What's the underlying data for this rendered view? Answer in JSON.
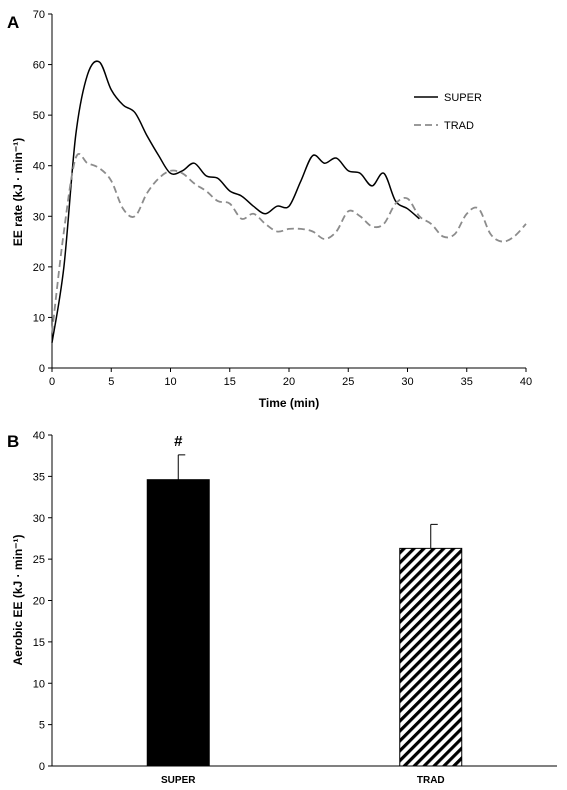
{
  "chart_data": [
    {
      "panel_label": "A",
      "type": "line",
      "xlabel": "Time (min)",
      "ylabel": "EE rate (kJ · min⁻¹)",
      "xlim": [
        0,
        40
      ],
      "ylim": [
        0,
        70
      ],
      "xticks": [
        0,
        5,
        10,
        15,
        20,
        25,
        30,
        35,
        40
      ],
      "yticks": [
        0,
        10,
        20,
        30,
        40,
        50,
        60,
        70
      ],
      "grid": false,
      "legend_position": "right",
      "series": [
        {
          "name": "SUPER",
          "color": "#000000",
          "dash": "solid",
          "x": [
            0,
            1,
            2,
            3,
            4,
            5,
            6,
            7,
            8,
            9,
            10,
            11,
            12,
            13,
            14,
            15,
            16,
            17,
            18,
            19,
            20,
            21,
            22,
            23,
            24,
            25,
            26,
            27,
            28,
            29,
            30,
            31
          ],
          "y": [
            5,
            20,
            46,
            58,
            60.5,
            55,
            52,
            50.5,
            46,
            42,
            38.5,
            39,
            40.5,
            38,
            37.5,
            35,
            34,
            32,
            30.5,
            32,
            32,
            37,
            42,
            40.5,
            41.5,
            39,
            38.5,
            36,
            38.5,
            33,
            31.5,
            29.5
          ]
        },
        {
          "name": "TRAD",
          "color": "#8c8c8c",
          "dash": "dashed",
          "x": [
            0,
            1,
            2,
            3,
            4,
            5,
            6,
            7,
            8,
            9,
            10,
            11,
            12,
            13,
            14,
            15,
            16,
            17,
            18,
            19,
            20,
            21,
            22,
            23,
            24,
            25,
            26,
            27,
            28,
            29,
            30,
            31,
            32,
            33,
            34,
            35,
            36,
            37,
            38,
            39,
            40
          ],
          "y": [
            7,
            27,
            41.5,
            40.5,
            39.5,
            37,
            31.5,
            30,
            34.5,
            37.5,
            39,
            38.5,
            36.5,
            35,
            33,
            32.5,
            29.5,
            30.5,
            28.5,
            27,
            27.5,
            27.5,
            27,
            25.5,
            27,
            31,
            30,
            28,
            28.5,
            32.5,
            33.5,
            30,
            28.5,
            26,
            26.5,
            30.5,
            31.5,
            26.5,
            25,
            26,
            28.5
          ]
        }
      ]
    },
    {
      "panel_label": "B",
      "type": "bar",
      "categories": [
        "SUPER",
        "TRAD"
      ],
      "values": [
        34.6,
        26.3
      ],
      "errors": [
        3.0,
        2.9
      ],
      "fills": [
        "solid-black",
        "diagonal-hatch"
      ],
      "ylabel": "Aerobic EE (kJ · min⁻¹)",
      "xlabel": "",
      "ylim": [
        0,
        40
      ],
      "yticks": [
        0,
        5,
        10,
        15,
        20,
        25,
        30,
        35,
        40
      ],
      "grid": false,
      "annotations": [
        {
          "category": "SUPER",
          "text": "#"
        }
      ]
    }
  ]
}
